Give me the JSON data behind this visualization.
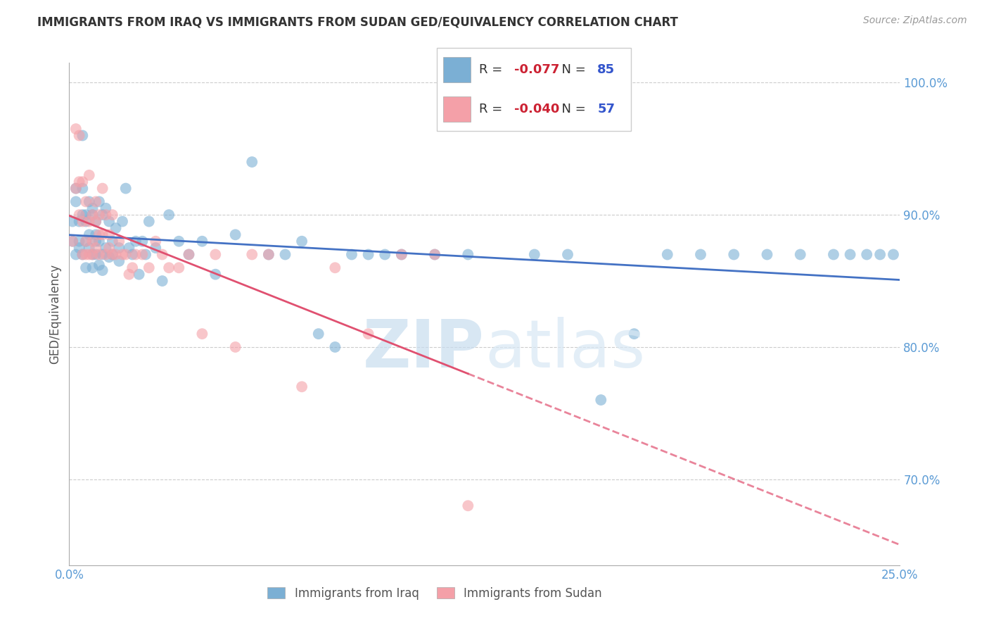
{
  "title": "IMMIGRANTS FROM IRAQ VS IMMIGRANTS FROM SUDAN GED/EQUIVALENCY CORRELATION CHART",
  "source": "Source: ZipAtlas.com",
  "ylabel": "GED/Equivalency",
  "xlim": [
    0.0,
    0.25
  ],
  "ylim": [
    0.635,
    1.015
  ],
  "yticks": [
    0.7,
    0.8,
    0.9,
    1.0
  ],
  "ytick_labels": [
    "70.0%",
    "80.0%",
    "90.0%",
    "100.0%"
  ],
  "iraq_R": -0.077,
  "iraq_N": 85,
  "sudan_R": -0.04,
  "sudan_N": 57,
  "iraq_color": "#7BAFD4",
  "sudan_color": "#F4A0A8",
  "iraq_line_color": "#4472C4",
  "sudan_line_color": "#E05070",
  "legend_label_iraq": "Immigrants from Iraq",
  "legend_label_sudan": "Immigrants from Sudan",
  "iraq_x": [
    0.001,
    0.001,
    0.002,
    0.002,
    0.002,
    0.003,
    0.003,
    0.003,
    0.004,
    0.004,
    0.004,
    0.004,
    0.005,
    0.005,
    0.005,
    0.005,
    0.006,
    0.006,
    0.006,
    0.007,
    0.007,
    0.007,
    0.007,
    0.008,
    0.008,
    0.008,
    0.008,
    0.009,
    0.009,
    0.009,
    0.01,
    0.01,
    0.01,
    0.011,
    0.011,
    0.012,
    0.012,
    0.013,
    0.013,
    0.014,
    0.015,
    0.015,
    0.016,
    0.017,
    0.018,
    0.019,
    0.02,
    0.021,
    0.022,
    0.023,
    0.024,
    0.026,
    0.028,
    0.03,
    0.033,
    0.036,
    0.04,
    0.044,
    0.05,
    0.055,
    0.06,
    0.065,
    0.07,
    0.075,
    0.08,
    0.085,
    0.09,
    0.095,
    0.1,
    0.11,
    0.12,
    0.14,
    0.15,
    0.16,
    0.17,
    0.18,
    0.19,
    0.2,
    0.21,
    0.22,
    0.23,
    0.235,
    0.24,
    0.244,
    0.248
  ],
  "iraq_y": [
    0.88,
    0.895,
    0.91,
    0.87,
    0.92,
    0.88,
    0.895,
    0.875,
    0.96,
    0.92,
    0.9,
    0.87,
    0.9,
    0.88,
    0.895,
    0.86,
    0.91,
    0.885,
    0.875,
    0.9,
    0.87,
    0.86,
    0.905,
    0.88,
    0.87,
    0.895,
    0.885,
    0.862,
    0.91,
    0.88,
    0.87,
    0.858,
    0.9,
    0.905,
    0.875,
    0.895,
    0.868,
    0.88,
    0.87,
    0.89,
    0.875,
    0.865,
    0.895,
    0.92,
    0.875,
    0.87,
    0.88,
    0.855,
    0.88,
    0.87,
    0.895,
    0.875,
    0.85,
    0.9,
    0.88,
    0.87,
    0.88,
    0.855,
    0.885,
    0.94,
    0.87,
    0.87,
    0.88,
    0.81,
    0.8,
    0.87,
    0.87,
    0.87,
    0.87,
    0.87,
    0.87,
    0.87,
    0.87,
    0.76,
    0.81,
    0.87,
    0.87,
    0.87,
    0.87,
    0.87,
    0.87,
    0.87,
    0.87,
    0.87,
    0.87
  ],
  "sudan_x": [
    0.001,
    0.002,
    0.002,
    0.003,
    0.003,
    0.003,
    0.004,
    0.004,
    0.004,
    0.005,
    0.005,
    0.005,
    0.006,
    0.006,
    0.006,
    0.007,
    0.007,
    0.007,
    0.008,
    0.008,
    0.008,
    0.009,
    0.009,
    0.009,
    0.01,
    0.01,
    0.011,
    0.011,
    0.012,
    0.012,
    0.013,
    0.013,
    0.014,
    0.015,
    0.016,
    0.017,
    0.018,
    0.019,
    0.02,
    0.022,
    0.024,
    0.026,
    0.028,
    0.03,
    0.033,
    0.036,
    0.04,
    0.044,
    0.05,
    0.055,
    0.06,
    0.07,
    0.08,
    0.09,
    0.1,
    0.11,
    0.12
  ],
  "sudan_y": [
    0.88,
    0.92,
    0.965,
    0.925,
    0.96,
    0.9,
    0.925,
    0.895,
    0.87,
    0.91,
    0.88,
    0.87,
    0.93,
    0.895,
    0.87,
    0.9,
    0.88,
    0.87,
    0.91,
    0.895,
    0.875,
    0.9,
    0.885,
    0.87,
    0.92,
    0.885,
    0.9,
    0.87,
    0.875,
    0.885,
    0.87,
    0.9,
    0.87,
    0.88,
    0.87,
    0.87,
    0.855,
    0.86,
    0.87,
    0.87,
    0.86,
    0.88,
    0.87,
    0.86,
    0.86,
    0.87,
    0.81,
    0.87,
    0.8,
    0.87,
    0.87,
    0.77,
    0.86,
    0.81,
    0.87,
    0.87,
    0.68
  ]
}
